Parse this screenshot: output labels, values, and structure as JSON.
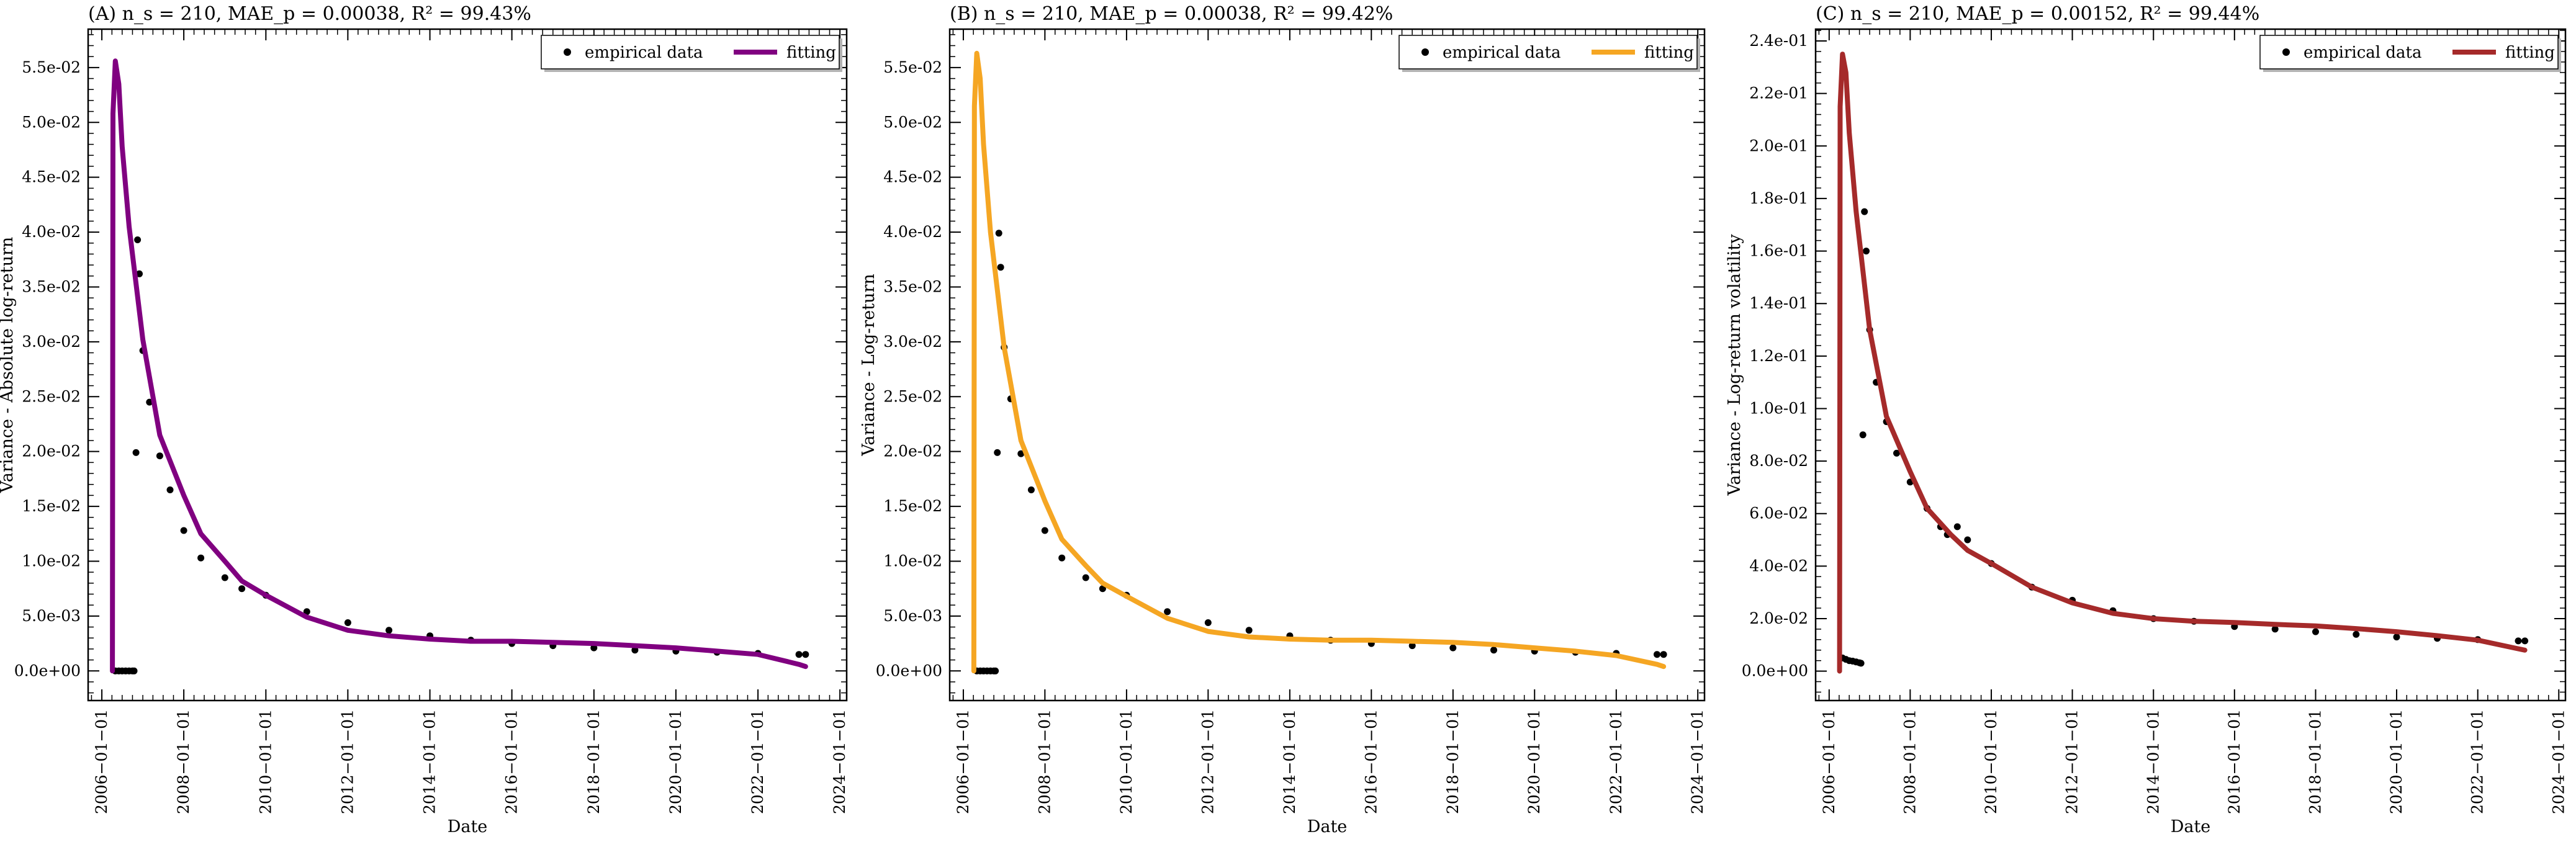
{
  "figure": {
    "shared_xlabel": "Date"
  },
  "chart_data": [
    {
      "type": "line",
      "panel": "A",
      "title": "(A) n_s = 210, MAE_p = 0.00038, R² = 99.43%",
      "xlabel": "Date",
      "ylabel": "Variance - Absolute log-return",
      "x_type": "date",
      "xlim": [
        "2005-09-01",
        "2024-03-01"
      ],
      "ylim": [
        -0.0027,
        0.0585
      ],
      "x_ticks": [
        "2006-01-01",
        "2008-01-01",
        "2010-01-01",
        "2012-01-01",
        "2014-01-01",
        "2016-01-01",
        "2018-01-01",
        "2020-01-01",
        "2022-01-01",
        "2024-01-01"
      ],
      "y_ticks": [
        "0.0e+00",
        "5.0e-03",
        "1.0e-02",
        "1.5e-02",
        "2.0e-02",
        "2.5e-02",
        "3.0e-02",
        "3.5e-02",
        "4.0e-02",
        "4.5e-02",
        "5.0e-02",
        "5.5e-02"
      ],
      "y_tick_values": [
        0,
        0.005,
        0.01,
        0.015,
        0.02,
        0.025,
        0.03,
        0.035,
        0.04,
        0.045,
        0.05,
        0.055
      ],
      "legend": {
        "placement": "top-right",
        "entries": [
          "empirical data",
          "fitting"
        ]
      },
      "grid": false,
      "series": [
        {
          "name": "empirical data",
          "style": "dots",
          "color": "#000000",
          "x": [
            "2006-05-01",
            "2006-06-01",
            "2006-07-01",
            "2006-08-01",
            "2006-09-01",
            "2006-10-01",
            "2006-10-15",
            "2006-11-01",
            "2006-11-15",
            "2006-12-01",
            "2007-01-01",
            "2007-03-01",
            "2007-06-01",
            "2007-09-01",
            "2008-01-01",
            "2008-06-01",
            "2009-01-01",
            "2009-06-01",
            "2010-01-01",
            "2011-01-01",
            "2012-01-01",
            "2013-01-01",
            "2014-01-01",
            "2015-01-01",
            "2016-01-01",
            "2017-01-01",
            "2018-01-01",
            "2019-01-01",
            "2020-01-01",
            "2021-01-01",
            "2022-01-01",
            "2023-01-01",
            "2023-03-01"
          ],
          "y": [
            0.0,
            0.0,
            0.0,
            0.0,
            0.0,
            0.0,
            0.0,
            0.0199,
            0.0393,
            0.0362,
            0.0292,
            0.0245,
            0.0196,
            0.0165,
            0.0128,
            0.0103,
            0.0085,
            0.0075,
            0.0069,
            0.0054,
            0.0044,
            0.0037,
            0.0032,
            0.0028,
            0.0025,
            0.0023,
            0.0021,
            0.0019,
            0.0018,
            0.0017,
            0.0016,
            0.0015,
            0.0015
          ]
        },
        {
          "name": "fitting",
          "style": "line",
          "color": "#800080",
          "x": [
            "2006-04-05",
            "2006-04-10",
            "2006-05-01",
            "2006-06-01",
            "2006-07-01",
            "2006-09-01",
            "2007-01-01",
            "2007-06-01",
            "2008-01-01",
            "2008-06-01",
            "2009-01-01",
            "2009-06-01",
            "2010-01-01",
            "2011-01-01",
            "2012-01-01",
            "2013-01-01",
            "2014-01-01",
            "2015-01-01",
            "2016-01-01",
            "2017-01-01",
            "2018-01-01",
            "2019-01-01",
            "2020-01-01",
            "2021-01-01",
            "2022-01-01",
            "2023-01-01",
            "2023-03-01"
          ],
          "y": [
            0.0,
            0.0508,
            0.0556,
            0.0535,
            0.0478,
            0.0405,
            0.0302,
            0.0215,
            0.016,
            0.0125,
            0.01,
            0.0082,
            0.0069,
            0.0049,
            0.0037,
            0.0032,
            0.0029,
            0.0027,
            0.0027,
            0.0026,
            0.0025,
            0.0023,
            0.0021,
            0.0018,
            0.0015,
            0.0006,
            0.0004
          ]
        }
      ]
    },
    {
      "type": "line",
      "panel": "B",
      "title": "(B) n_s = 210, MAE_p = 0.00038, R² = 99.42%",
      "xlabel": "Date",
      "ylabel": "Variance - Log-return",
      "x_type": "date",
      "xlim": [
        "2005-09-01",
        "2024-03-01"
      ],
      "ylim": [
        -0.0027,
        0.0585
      ],
      "x_ticks": [
        "2006-01-01",
        "2008-01-01",
        "2010-01-01",
        "2012-01-01",
        "2014-01-01",
        "2016-01-01",
        "2018-01-01",
        "2020-01-01",
        "2022-01-01",
        "2024-01-01"
      ],
      "y_ticks": [
        "0.0e+00",
        "5.0e-03",
        "1.0e-02",
        "1.5e-02",
        "2.0e-02",
        "2.5e-02",
        "3.0e-02",
        "3.5e-02",
        "4.0e-02",
        "4.5e-02",
        "5.0e-02",
        "5.5e-02"
      ],
      "y_tick_values": [
        0,
        0.005,
        0.01,
        0.015,
        0.02,
        0.025,
        0.03,
        0.035,
        0.04,
        0.045,
        0.05,
        0.055
      ],
      "legend": {
        "placement": "top-right",
        "entries": [
          "empirical data",
          "fitting"
        ]
      },
      "grid": false,
      "series": [
        {
          "name": "empirical data",
          "style": "dots",
          "color": "#000000",
          "x": [
            "2006-05-01",
            "2006-06-01",
            "2006-07-01",
            "2006-08-01",
            "2006-09-01",
            "2006-10-01",
            "2006-10-15",
            "2006-11-01",
            "2006-11-15",
            "2006-12-01",
            "2007-01-01",
            "2007-03-01",
            "2007-06-01",
            "2007-09-01",
            "2008-01-01",
            "2008-06-01",
            "2009-01-01",
            "2009-06-01",
            "2010-01-01",
            "2011-01-01",
            "2012-01-01",
            "2013-01-01",
            "2014-01-01",
            "2015-01-01",
            "2016-01-01",
            "2017-01-01",
            "2018-01-01",
            "2019-01-01",
            "2020-01-01",
            "2021-01-01",
            "2022-01-01",
            "2023-01-01",
            "2023-03-01"
          ],
          "y": [
            0.0,
            0.0,
            0.0,
            0.0,
            0.0,
            0.0,
            0.0,
            0.0199,
            0.0399,
            0.0368,
            0.0295,
            0.0248,
            0.0198,
            0.0165,
            0.0128,
            0.0103,
            0.0085,
            0.0075,
            0.0069,
            0.0054,
            0.0044,
            0.0037,
            0.0032,
            0.0028,
            0.0025,
            0.0023,
            0.0021,
            0.0019,
            0.0018,
            0.0017,
            0.0016,
            0.0015,
            0.0015
          ]
        },
        {
          "name": "fitting",
          "style": "line",
          "color": "#f5a623",
          "x": [
            "2006-04-05",
            "2006-04-10",
            "2006-05-01",
            "2006-06-01",
            "2006-07-01",
            "2006-09-01",
            "2007-01-01",
            "2007-06-01",
            "2008-01-01",
            "2008-06-01",
            "2009-01-01",
            "2009-06-01",
            "2010-01-01",
            "2011-01-01",
            "2012-01-01",
            "2013-01-01",
            "2014-01-01",
            "2015-01-01",
            "2016-01-01",
            "2017-01-01",
            "2018-01-01",
            "2019-01-01",
            "2020-01-01",
            "2021-01-01",
            "2022-01-01",
            "2023-01-01",
            "2023-03-01"
          ],
          "y": [
            0.0,
            0.0515,
            0.0563,
            0.054,
            0.048,
            0.04,
            0.0295,
            0.021,
            0.0155,
            0.012,
            0.0096,
            0.008,
            0.0068,
            0.0048,
            0.0036,
            0.0031,
            0.0029,
            0.0028,
            0.0028,
            0.0027,
            0.0026,
            0.0024,
            0.0021,
            0.0018,
            0.0014,
            0.0006,
            0.0004
          ]
        }
      ]
    },
    {
      "type": "line",
      "panel": "C",
      "title": "(C) n_s = 210, MAE_p = 0.00152, R² = 99.44%",
      "xlabel": "Date",
      "ylabel": "Variance - Log-return volatility",
      "x_type": "date",
      "xlim": [
        "2005-09-01",
        "2024-03-01"
      ],
      "ylim": [
        -0.0112,
        0.2445
      ],
      "x_ticks": [
        "2006-01-01",
        "2008-01-01",
        "2010-01-01",
        "2012-01-01",
        "2014-01-01",
        "2016-01-01",
        "2018-01-01",
        "2020-01-01",
        "2022-01-01",
        "2024-01-01"
      ],
      "y_ticks": [
        "0.0e+00",
        "2.0e-02",
        "4.0e-02",
        "6.0e-02",
        "8.0e-02",
        "1.0e-01",
        "1.2e-01",
        "1.4e-01",
        "1.6e-01",
        "1.8e-01",
        "2.0e-01",
        "2.2e-01",
        "2.4e-01"
      ],
      "y_tick_values": [
        0,
        0.02,
        0.04,
        0.06,
        0.08,
        0.1,
        0.12,
        0.14,
        0.16,
        0.18,
        0.2,
        0.22,
        0.24
      ],
      "legend": {
        "placement": "top-right",
        "entries": [
          "empirical data",
          "fitting"
        ]
      },
      "grid": false,
      "series": [
        {
          "name": "empirical data",
          "style": "dots",
          "color": "#000000",
          "x": [
            "2006-05-01",
            "2006-06-01",
            "2006-07-01",
            "2006-08-01",
            "2006-09-01",
            "2006-10-01",
            "2006-10-15",
            "2006-11-01",
            "2006-11-15",
            "2006-12-01",
            "2007-01-01",
            "2007-03-01",
            "2007-06-01",
            "2007-09-01",
            "2008-01-01",
            "2008-06-01",
            "2008-10-01",
            "2008-12-01",
            "2009-03-01",
            "2009-06-01",
            "2010-01-01",
            "2011-01-01",
            "2012-01-01",
            "2013-01-01",
            "2014-01-01",
            "2015-01-01",
            "2016-01-01",
            "2017-01-01",
            "2018-01-01",
            "2019-01-01",
            "2020-01-01",
            "2021-01-01",
            "2022-01-01",
            "2023-01-01",
            "2023-03-01"
          ],
          "y": [
            0.005,
            0.0045,
            0.004,
            0.0038,
            0.0035,
            0.0032,
            0.003,
            0.09,
            0.175,
            0.16,
            0.13,
            0.11,
            0.095,
            0.083,
            0.072,
            0.062,
            0.055,
            0.052,
            0.055,
            0.05,
            0.041,
            0.032,
            0.027,
            0.023,
            0.02,
            0.019,
            0.017,
            0.016,
            0.015,
            0.014,
            0.013,
            0.0125,
            0.012,
            0.0115,
            0.0115
          ]
        },
        {
          "name": "fitting",
          "style": "line",
          "color": "#a52a2a",
          "x": [
            "2006-04-05",
            "2006-04-10",
            "2006-05-01",
            "2006-06-01",
            "2006-07-01",
            "2006-09-01",
            "2007-01-01",
            "2007-06-01",
            "2008-01-01",
            "2008-06-01",
            "2009-01-01",
            "2009-06-01",
            "2010-01-01",
            "2011-01-01",
            "2012-01-01",
            "2013-01-01",
            "2014-01-01",
            "2015-01-01",
            "2016-01-01",
            "2017-01-01",
            "2018-01-01",
            "2019-01-01",
            "2020-01-01",
            "2021-01-01",
            "2022-01-01",
            "2023-01-01",
            "2023-03-01"
          ],
          "y": [
            0.0,
            0.215,
            0.235,
            0.228,
            0.205,
            0.175,
            0.13,
            0.097,
            0.076,
            0.062,
            0.052,
            0.046,
            0.041,
            0.032,
            0.026,
            0.022,
            0.02,
            0.019,
            0.0185,
            0.0178,
            0.0172,
            0.0162,
            0.015,
            0.0135,
            0.0118,
            0.0085,
            0.008
          ]
        }
      ]
    }
  ]
}
